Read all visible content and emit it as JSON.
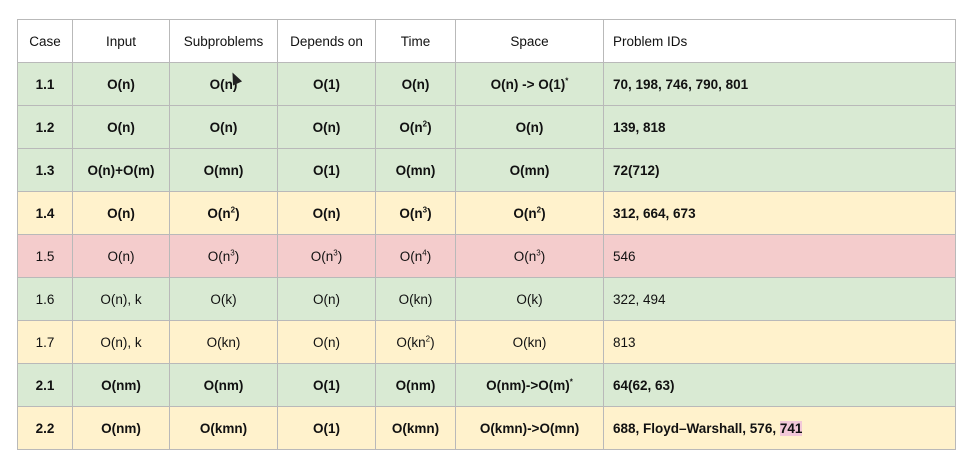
{
  "headers": [
    "Case",
    "Input",
    "Subproblems",
    "Depends on",
    "Time",
    "Space",
    "Problem IDs"
  ],
  "colors": {
    "green": "#d9ead3",
    "yellow": "#fff2cc",
    "red": "#f4cccc",
    "highlight": "#f2c8d8"
  },
  "rows": [
    {
      "theme": "green",
      "bold": true,
      "case": "1.1",
      "input": "O(n)",
      "sub": "O(n)",
      "dep": "O(1)",
      "time": "O(n)",
      "space": "O(n) -> O(1)",
      "space_sup": "*",
      "ids": "70, 198, 746, 790, 801"
    },
    {
      "theme": "green",
      "bold": true,
      "case": "1.2",
      "input": "O(n)",
      "sub": "O(n)",
      "dep": "O(n)",
      "time": "O(n",
      "time_sup": "2",
      "time_tail": ")",
      "space": "O(n)",
      "ids": "139, 818"
    },
    {
      "theme": "green",
      "bold": true,
      "case": "1.3",
      "input": "O(n)+O(m)",
      "sub": "O(mn)",
      "dep": "O(1)",
      "time": "O(mn)",
      "space": "O(mn)",
      "ids": "72(712)"
    },
    {
      "theme": "yellow",
      "bold": true,
      "case": "1.4",
      "input": "O(n)",
      "sub": "O(n",
      "sub_sup": "2",
      "sub_tail": ")",
      "dep": "O(n)",
      "time": "O(n",
      "time_sup": "3",
      "time_tail": ")",
      "space": "O(n",
      "space_sup": "2",
      "space_tail": ")",
      "ids": "312, 664, 673"
    },
    {
      "theme": "red",
      "bold": false,
      "case": "1.5",
      "input": "O(n)",
      "sub": "O(n",
      "sub_sup": "3",
      "sub_tail": ")",
      "dep": "O(n",
      "dep_sup": "3",
      "dep_tail": ")",
      "time": "O(n",
      "time_sup": "4",
      "time_tail": ")",
      "space": "O(n",
      "space_sup": "3",
      "space_tail": ")",
      "ids": "546"
    },
    {
      "theme": "green",
      "bold": false,
      "case": "1.6",
      "input": "O(n), k",
      "sub": "O(k)",
      "dep": "O(n)",
      "time": "O(kn)",
      "space": "O(k)",
      "ids": "322, 494"
    },
    {
      "theme": "yellow",
      "bold": false,
      "case": "1.7",
      "input": "O(n), k",
      "sub": "O(kn)",
      "dep": "O(n)",
      "time": "O(kn",
      "time_sup": "2",
      "time_tail": ")",
      "space": "O(kn)",
      "ids": "813"
    },
    {
      "theme": "green",
      "bold": true,
      "case": "2.1",
      "input": "O(nm)",
      "sub": "O(nm)",
      "dep": "O(1)",
      "time": "O(nm)",
      "space": "O(nm)->O(m)",
      "space_sup": "*",
      "ids": "64(62, 63)"
    },
    {
      "theme": "yellow",
      "bold": true,
      "case": "2.2",
      "input": "O(nm)",
      "sub": "O(kmn)",
      "dep": "O(1)",
      "time": "O(kmn)",
      "space": "O(kmn)->O(mn)",
      "ids": "688, Floyd–Warshall, 576, ",
      "ids_hl": "741"
    }
  ]
}
